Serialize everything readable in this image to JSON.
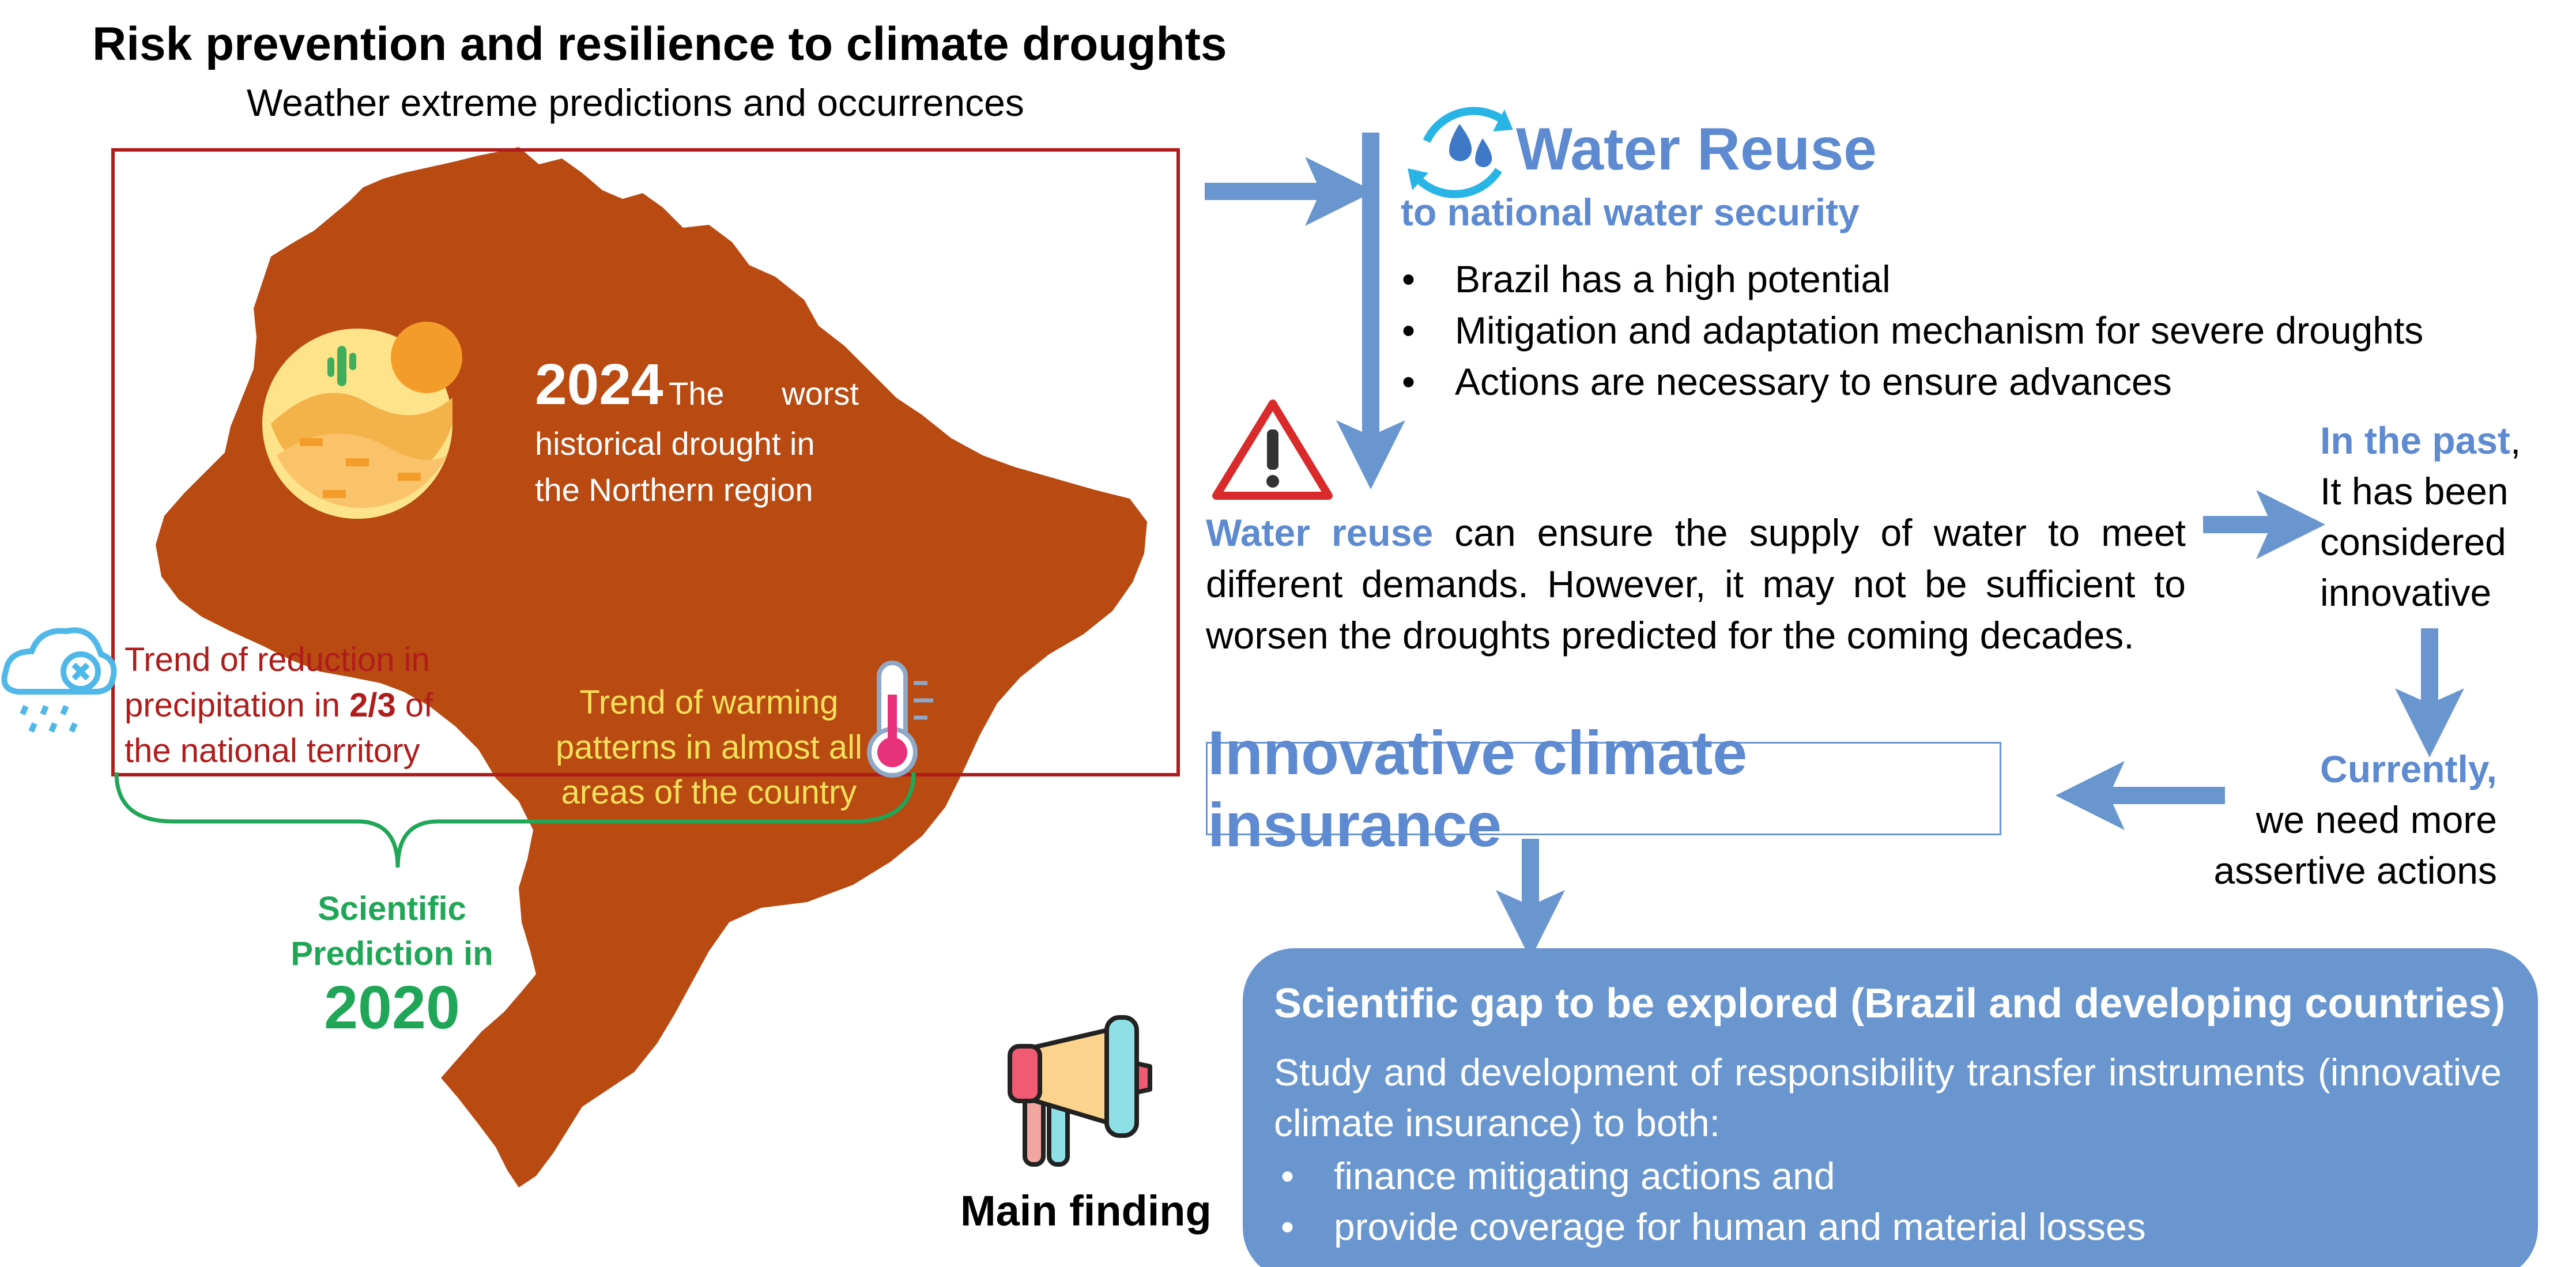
{
  "header": {
    "title": "Risk prevention and resilience to climate droughts",
    "subtitle": "Weather extreme predictions and occurrences"
  },
  "map": {
    "year": "2024",
    "worst": "The worst",
    "rest_lines": [
      "historical drought in",
      "the Northern region"
    ],
    "precip_pre": "Trend of reduction in",
    "precip_mid": "precipitation in ",
    "precip_strong": "2/3",
    "precip_post": " of",
    "precip_last": "the national territory",
    "warming_lines": [
      "Trend of warming",
      "patterns in almost all",
      "areas of the country"
    ],
    "scientific_lines": [
      "Scientific",
      "Prediction in"
    ],
    "scientific_year": "2020"
  },
  "water_reuse": {
    "title": "Water Reuse",
    "subtitle": "to national water security",
    "bullets": [
      "Brazil has a high potential",
      "Mitigation and adaptation mechanism for severe droughts",
      "Actions are necessary to ensure advances"
    ],
    "para_lead": "Water reuse",
    "para_rest": " can ensure the supply of water to meet different demands. However, it may not be sufficient to worsen the droughts predicted for the coming decades."
  },
  "past": {
    "lead": "In the past",
    "comma": ",",
    "lines": [
      "It has been",
      "considered",
      "innovative"
    ]
  },
  "currently": {
    "lead": "Currently,",
    "lines": [
      "we need more",
      "assertive actions"
    ]
  },
  "insurance": {
    "label": "Innovative climate insurance"
  },
  "gap": {
    "title": "Scientific gap to be explored (Brazil and developing countries)",
    "body": "Study and development of responsibility transfer instruments (innovative climate insurance) to both:",
    "bullets": [
      "finance mitigating actions and",
      "provide coverage for human and material losses"
    ]
  },
  "main_finding": "Main finding",
  "colors": {
    "map": "#b84a12",
    "accent_blue": "#5d8ad0",
    "box_blue": "#6a96cf",
    "frame_red": "#b01c1c",
    "green": "#1fa656",
    "yellow_text": "#f5e05a"
  },
  "icons": [
    "water-cycle-icon",
    "warning-icon",
    "storm-cloud-icon",
    "thermometer-icon",
    "desert-sun-icon",
    "megaphone-icon",
    "lightbulb-icon"
  ]
}
